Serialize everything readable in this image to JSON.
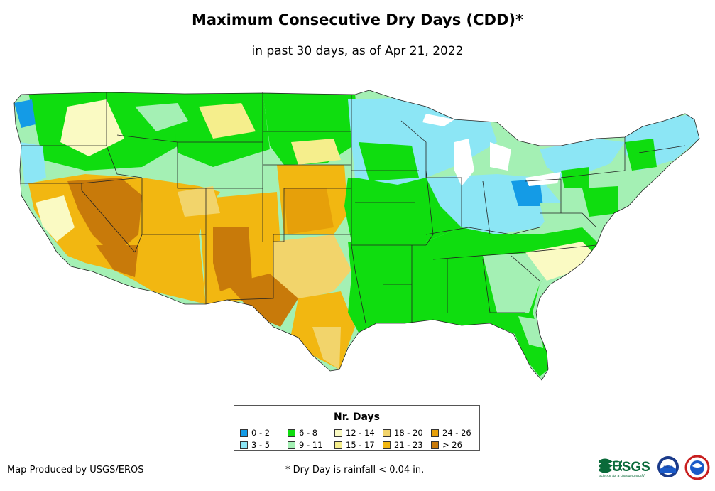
{
  "title": "Maximum Consecutive Dry Days (CDD)*",
  "subtitle": "in past 30 days, as of Apr 21, 2022",
  "legend": {
    "title": "Nr. Days",
    "items": [
      {
        "label": "0 - 2",
        "color": "#149be6"
      },
      {
        "label": "3 - 5",
        "color": "#8ce6f5"
      },
      {
        "label": "6 - 8",
        "color": "#0fdd0f"
      },
      {
        "label": "9 - 11",
        "color": "#a4f0b4"
      },
      {
        "label": "12 - 14",
        "color": "#fafac3"
      },
      {
        "label": "15 - 17",
        "color": "#f5ee8c"
      },
      {
        "label": "18 - 20",
        "color": "#f2d46b"
      },
      {
        "label": "21 - 23",
        "color": "#f2b711"
      },
      {
        "label": "24 - 26",
        "color": "#e6a00a"
      },
      {
        "label": "> 26",
        "color": "#c87a0a"
      }
    ]
  },
  "credit": "Map Produced by USGS/EROS",
  "footnote": "* Dry Day is rainfall < 0.04 in.",
  "logos": {
    "usgs": "USGS",
    "usgs_tagline": "science for a changing world",
    "noaa": "noaa"
  }
}
